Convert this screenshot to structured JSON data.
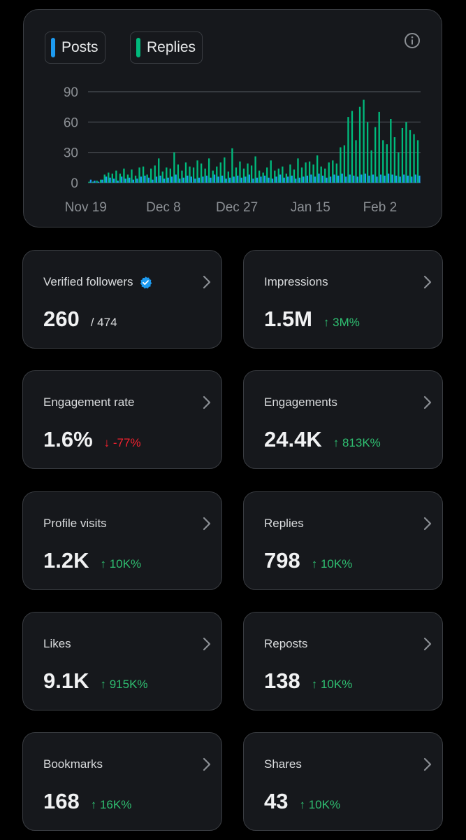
{
  "chart": {
    "legend": [
      {
        "label": "Posts",
        "color": "#1d9bf0"
      },
      {
        "label": "Replies",
        "color": "#00ba7c"
      }
    ],
    "info_icon": "info-icon"
  },
  "chart_data": {
    "type": "bar",
    "title": "",
    "xlabel": "",
    "ylabel": "",
    "ylim": [
      0,
      90
    ],
    "yticks": [
      "90",
      "60",
      "30",
      "0"
    ],
    "xticks": [
      "Nov 19",
      "Dec 8",
      "Dec 27",
      "Jan 15",
      "Feb 2"
    ],
    "grid": true,
    "legend_position": "top-left",
    "categories": [
      "Nov 19",
      "Nov 20",
      "Nov 21",
      "Nov 22",
      "Nov 23",
      "Nov 24",
      "Nov 25",
      "Nov 26",
      "Nov 27",
      "Nov 28",
      "Nov 29",
      "Nov 30",
      "Dec 1",
      "Dec 2",
      "Dec 3",
      "Dec 4",
      "Dec 5",
      "Dec 6",
      "Dec 7",
      "Dec 8",
      "Dec 9",
      "Dec 10",
      "Dec 11",
      "Dec 12",
      "Dec 13",
      "Dec 14",
      "Dec 15",
      "Dec 16",
      "Dec 17",
      "Dec 18",
      "Dec 19",
      "Dec 20",
      "Dec 21",
      "Dec 22",
      "Dec 23",
      "Dec 24",
      "Dec 25",
      "Dec 26",
      "Dec 27",
      "Dec 28",
      "Dec 29",
      "Dec 30",
      "Dec 31",
      "Jan 1",
      "Jan 2",
      "Jan 3",
      "Jan 4",
      "Jan 5",
      "Jan 6",
      "Jan 7",
      "Jan 8",
      "Jan 9",
      "Jan 10",
      "Jan 11",
      "Jan 12",
      "Jan 13",
      "Jan 14",
      "Jan 15",
      "Jan 16",
      "Jan 17",
      "Jan 18",
      "Jan 19",
      "Jan 20",
      "Jan 21",
      "Jan 22",
      "Jan 23",
      "Jan 24",
      "Jan 25",
      "Jan 26",
      "Jan 27",
      "Jan 28",
      "Jan 29",
      "Jan 30",
      "Jan 31",
      "Feb 1",
      "Feb 2",
      "Feb 3",
      "Feb 4",
      "Feb 5",
      "Feb 6",
      "Feb 7",
      "Feb 8",
      "Feb 9",
      "Feb 10",
      "Feb 11",
      "Feb 12"
    ],
    "series": [
      {
        "name": "Posts",
        "color": "#1d9bf0",
        "values": [
          3,
          2,
          1,
          3,
          6,
          5,
          4,
          2,
          6,
          4,
          5,
          3,
          4,
          6,
          7,
          5,
          3,
          6,
          7,
          4,
          5,
          6,
          8,
          4,
          5,
          7,
          6,
          4,
          5,
          6,
          7,
          5,
          8,
          6,
          7,
          4,
          5,
          6,
          7,
          5,
          6,
          8,
          4,
          5,
          6,
          7,
          5,
          4,
          6,
          8,
          5,
          6,
          7,
          4,
          5,
          6,
          7,
          8,
          6,
          9,
          7,
          5,
          6,
          8,
          7,
          9,
          6,
          8,
          7,
          6,
          8,
          9,
          7,
          8,
          6,
          8,
          7,
          9,
          8,
          7,
          6,
          8,
          7,
          6,
          8,
          7
        ]
      },
      {
        "name": "Replies",
        "color": "#00ba7c",
        "values": [
          1,
          1,
          2,
          3,
          8,
          10,
          9,
          12,
          9,
          14,
          8,
          13,
          7,
          15,
          16,
          8,
          14,
          17,
          24,
          11,
          15,
          14,
          30,
          18,
          12,
          20,
          16,
          15,
          22,
          19,
          14,
          24,
          12,
          16,
          20,
          25,
          11,
          34,
          15,
          21,
          14,
          19,
          17,
          26,
          12,
          10,
          15,
          22,
          12,
          14,
          16,
          9,
          18,
          13,
          24,
          15,
          20,
          21,
          18,
          27,
          16,
          14,
          20,
          22,
          19,
          35,
          37,
          65,
          71,
          42,
          75,
          82,
          60,
          32,
          55,
          70,
          42,
          38,
          63,
          45,
          30,
          54,
          60,
          52,
          48,
          42
        ]
      }
    ]
  },
  "cards": [
    {
      "label": "Verified followers",
      "value": "260",
      "total": "/ 474",
      "verified_icon": "verified-badge-icon"
    },
    {
      "label": "Impressions",
      "value": "1.5M",
      "change": "↑ 3M%",
      "direction": "up"
    },
    {
      "label": "Engagement rate",
      "value": "1.6%",
      "change": "↓ -77%",
      "direction": "down"
    },
    {
      "label": "Engagements",
      "value": "24.4K",
      "change": "↑ 813K%",
      "direction": "up"
    },
    {
      "label": "Profile visits",
      "value": "1.2K",
      "change": "↑ 10K%",
      "direction": "up"
    },
    {
      "label": "Replies",
      "value": "798",
      "change": "↑ 10K%",
      "direction": "up"
    },
    {
      "label": "Likes",
      "value": "9.1K",
      "change": "↑ 915K%",
      "direction": "up"
    },
    {
      "label": "Reposts",
      "value": "138",
      "change": "↑ 10K%",
      "direction": "up"
    },
    {
      "label": "Bookmarks",
      "value": "168",
      "change": "↑ 16K%",
      "direction": "up"
    },
    {
      "label": "Shares",
      "value": "43",
      "change": "↑ 10K%",
      "direction": "up"
    }
  ]
}
